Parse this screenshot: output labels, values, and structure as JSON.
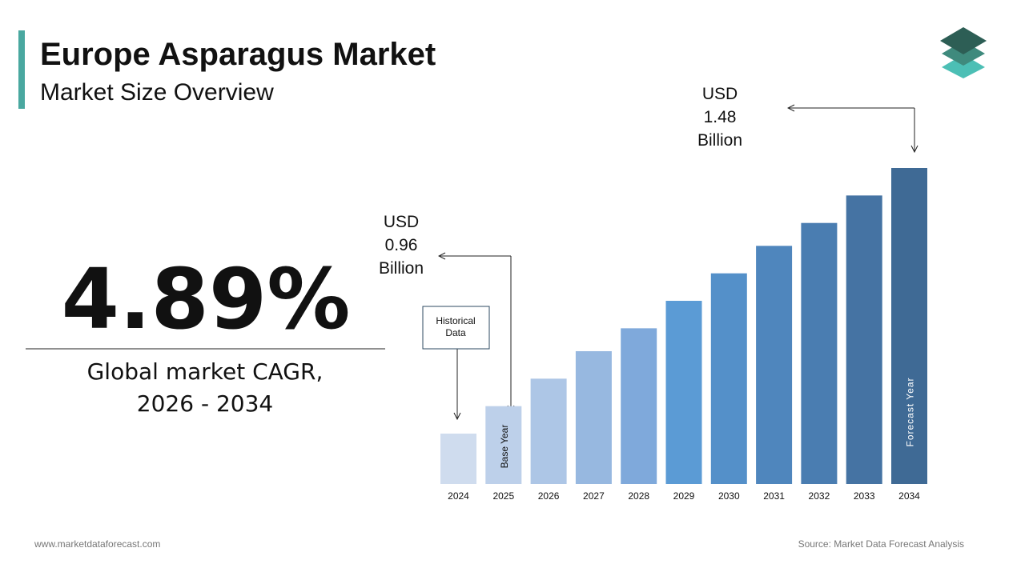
{
  "header": {
    "title": "Europe Asparagus Market",
    "subtitle": "Market Size Overview"
  },
  "cagr": {
    "value": "4.89%",
    "label_lines": [
      "Global market CAGR,",
      "2026 - 2034"
    ]
  },
  "chart_data": {
    "type": "bar",
    "categories": [
      "2024",
      "2025",
      "2026",
      "2027",
      "2028",
      "2029",
      "2030",
      "2031",
      "2032",
      "2033",
      "2034"
    ],
    "values": [
      0.9,
      0.96,
      1.02,
      1.08,
      1.13,
      1.19,
      1.25,
      1.31,
      1.36,
      1.42,
      1.48
    ],
    "value_labels": [
      null,
      "USD 0.96 Billion",
      null,
      null,
      null,
      null,
      null,
      null,
      null,
      null,
      "USD 1.48 Billion"
    ],
    "colors": [
      "#cfdcee",
      "#bdd0ea",
      "#adc6e6",
      "#97b8e0",
      "#7fa9db",
      "#5b9bd5",
      "#5490c9",
      "#4f86bd",
      "#4a7db1",
      "#4573a3",
      "#3f6a95"
    ],
    "ylim": [
      0.79,
      1.48
    ],
    "annotations": {
      "historical": "Historical Data",
      "base_year": "Base Year",
      "forecast_year": "Forecast Year"
    }
  },
  "footer": {
    "website": "www.marketdataforecast.com",
    "source": "Source: Market Data Forecast Analysis"
  }
}
